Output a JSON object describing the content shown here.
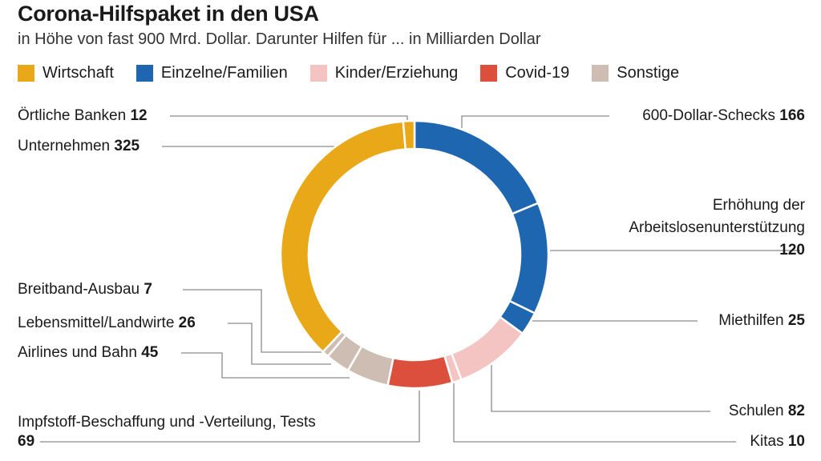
{
  "title": "Corona-Hilfspaket in den USA",
  "subtitle": "in Höhe von fast 900 Mrd. Dollar. Darunter Hilfen für ... in Milliarden Dollar",
  "legend": [
    {
      "name": "Wirtschaft",
      "color": "#e8a817"
    },
    {
      "name": "Einzelne/Familien",
      "color": "#1f66b0"
    },
    {
      "name": "Kinder/Erziehung",
      "color": "#f3c4c2"
    },
    {
      "name": "Covid-19",
      "color": "#dc4f3d"
    },
    {
      "name": "Sonstige",
      "color": "#cdbdb2"
    }
  ],
  "labels": {
    "banken": "Örtliche Banken",
    "banken_v": "12",
    "unternehmen": "Unternehmen",
    "unternehmen_v": "325",
    "schecks": "600-Dollar-Schecks",
    "schecks_v": "166",
    "arbeitslos_1": "Erhöhung der",
    "arbeitslos_2": "Arbeitslosenunterstützung",
    "arbeitslos_v": "120",
    "miete": "Miethilfen",
    "miete_v": "25",
    "breitband": "Breitband-Ausbau",
    "breitband_v": "7",
    "lebensmittel": "Lebensmittel/Landwirte",
    "lebensmittel_v": "26",
    "airlines": "Airlines und Bahn",
    "airlines_v": "45",
    "impfstoff": "Impfstoff-Beschaffung und -Verteilung, Tests",
    "impfstoff_v": "69",
    "schulen": "Schulen",
    "schulen_v": "82",
    "kitas": "Kitas",
    "kitas_v": "10"
  },
  "chart_data": {
    "type": "pie",
    "variant": "donut",
    "title": "Corona-Hilfspaket in den USA",
    "subtitle": "in Höhe von fast 900 Mrd. Dollar. Darunter Hilfen für ... in Milliarden Dollar",
    "unit": "Milliarden Dollar",
    "slices": [
      {
        "label": "600-Dollar-Schecks",
        "value": 166,
        "group": "Einzelne/Familien",
        "color": "#1f66b0"
      },
      {
        "label": "Erhöhung der Arbeitslosenunterstützung",
        "value": 120,
        "group": "Einzelne/Familien",
        "color": "#1f66b0"
      },
      {
        "label": "Miethilfen",
        "value": 25,
        "group": "Einzelne/Familien",
        "color": "#1f66b0"
      },
      {
        "label": "Schulen",
        "value": 82,
        "group": "Kinder/Erziehung",
        "color": "#f3c4c2"
      },
      {
        "label": "Kitas",
        "value": 10,
        "group": "Kinder/Erziehung",
        "color": "#f3c4c2"
      },
      {
        "label": "Impfstoff-Beschaffung und -Verteilung, Tests",
        "value": 69,
        "group": "Covid-19",
        "color": "#dc4f3d"
      },
      {
        "label": "Airlines und Bahn",
        "value": 45,
        "group": "Sonstige",
        "color": "#cdbdb2"
      },
      {
        "label": "Lebensmittel/Landwirte",
        "value": 26,
        "group": "Sonstige",
        "color": "#cdbdb2"
      },
      {
        "label": "Breitband-Ausbau",
        "value": 7,
        "group": "Sonstige",
        "color": "#cdbdb2"
      },
      {
        "label": "Unternehmen",
        "value": 325,
        "group": "Wirtschaft",
        "color": "#e8a817"
      },
      {
        "label": "Örtliche Banken",
        "value": 12,
        "group": "Wirtschaft",
        "color": "#e8a817"
      }
    ],
    "legend_placement": "top-left"
  }
}
